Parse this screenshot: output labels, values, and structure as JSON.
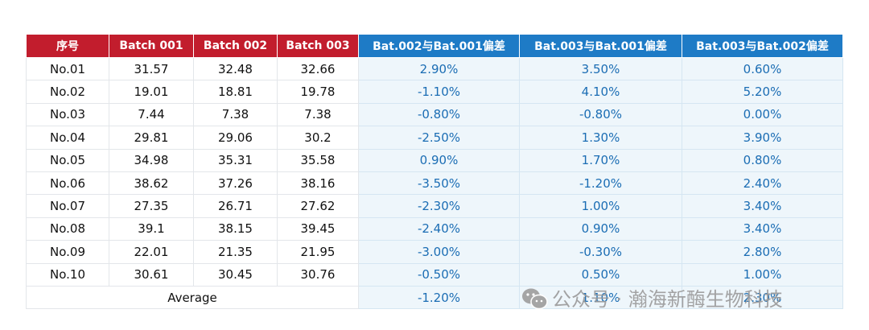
{
  "table": {
    "header": [
      "序号",
      "Batch 001",
      "Batch 002",
      "Batch 003",
      "Bat.002与Bat.001偏差",
      "Bat.003与Bat.001偏差",
      "Bat.003与Bat.002偏差"
    ],
    "rows": [
      [
        "No.01",
        "31.57",
        "32.48",
        "32.66",
        "2.90%",
        "3.50%",
        "0.60%"
      ],
      [
        "No.02",
        "19.01",
        "18.81",
        "19.78",
        "-1.10%",
        "4.10%",
        "5.20%"
      ],
      [
        "No.03",
        "7.44",
        "7.38",
        "7.38",
        "-0.80%",
        "-0.80%",
        "0.00%"
      ],
      [
        "No.04",
        "29.81",
        "29.06",
        "30.2",
        "-2.50%",
        "1.30%",
        "3.90%"
      ],
      [
        "No.05",
        "34.98",
        "35.31",
        "35.58",
        "0.90%",
        "1.70%",
        "0.80%"
      ],
      [
        "No.06",
        "38.62",
        "37.26",
        "38.16",
        "-3.50%",
        "-1.20%",
        "2.40%"
      ],
      [
        "No.07",
        "27.35",
        "26.71",
        "27.62",
        "-2.30%",
        "1.00%",
        "3.40%"
      ],
      [
        "No.08",
        "39.1",
        "38.15",
        "39.45",
        "-2.40%",
        "0.90%",
        "3.40%"
      ],
      [
        "No.09",
        "22.01",
        "21.35",
        "21.95",
        "-3.00%",
        "-0.30%",
        "2.80%"
      ],
      [
        "No.10",
        "30.61",
        "30.45",
        "30.76",
        "-0.50%",
        "0.50%",
        "1.00%"
      ]
    ],
    "average": {
      "label": "Average",
      "values": [
        "-1.20%",
        "1.10%",
        "2.30%"
      ]
    }
  },
  "watermark": "公众号 · 瀚海新酶生物科技"
}
